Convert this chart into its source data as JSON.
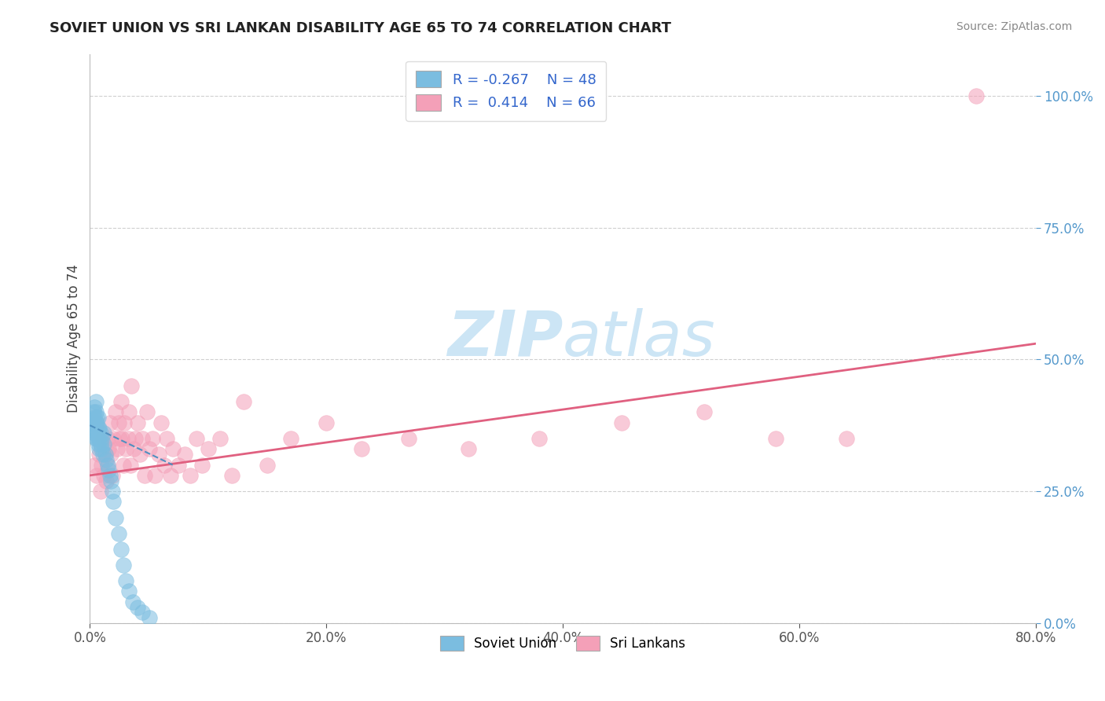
{
  "title": "SOVIET UNION VS SRI LANKAN DISABILITY AGE 65 TO 74 CORRELATION CHART",
  "source": "Source: ZipAtlas.com",
  "ylabel": "Disability Age 65 to 74",
  "xlim": [
    0.0,
    0.8
  ],
  "ylim": [
    0.0,
    1.08
  ],
  "yticks": [
    0.0,
    0.25,
    0.5,
    0.75,
    1.0
  ],
  "ytick_labels": [
    "0.0%",
    "25.0%",
    "50.0%",
    "75.0%",
    "100.0%"
  ],
  "xticks": [
    0.0,
    0.2,
    0.4,
    0.6,
    0.8
  ],
  "xtick_labels": [
    "0.0%",
    "20.0%",
    "40.0%",
    "60.0%",
    "80.0%"
  ],
  "soviet_R": -0.267,
  "soviet_N": 48,
  "srilankan_R": 0.414,
  "srilankan_N": 66,
  "soviet_color": "#7bbde0",
  "srilankan_color": "#f4a0b8",
  "soviet_line_color": "#5090c0",
  "srilankan_line_color": "#e06080",
  "background_color": "#ffffff",
  "grid_color": "#d0d0d0",
  "watermark_color": "#cce5f5",
  "legend_label_soviet": "Soviet Union",
  "legend_label_srilankan": "Sri Lankans",
  "soviet_x": [
    0.001,
    0.002,
    0.003,
    0.003,
    0.004,
    0.004,
    0.004,
    0.005,
    0.005,
    0.005,
    0.005,
    0.005,
    0.006,
    0.006,
    0.006,
    0.006,
    0.007,
    0.007,
    0.007,
    0.007,
    0.008,
    0.008,
    0.008,
    0.009,
    0.009,
    0.01,
    0.01,
    0.011,
    0.012,
    0.012,
    0.013,
    0.014,
    0.015,
    0.016,
    0.017,
    0.018,
    0.019,
    0.02,
    0.022,
    0.024,
    0.026,
    0.028,
    0.03,
    0.033,
    0.036,
    0.04,
    0.044,
    0.05
  ],
  "soviet_y": [
    0.38,
    0.38,
    0.37,
    0.4,
    0.36,
    0.39,
    0.41,
    0.35,
    0.37,
    0.38,
    0.4,
    0.42,
    0.35,
    0.36,
    0.38,
    0.39,
    0.34,
    0.35,
    0.37,
    0.39,
    0.33,
    0.35,
    0.37,
    0.34,
    0.36,
    0.33,
    0.35,
    0.32,
    0.34,
    0.36,
    0.32,
    0.31,
    0.3,
    0.29,
    0.28,
    0.27,
    0.25,
    0.23,
    0.2,
    0.17,
    0.14,
    0.11,
    0.08,
    0.06,
    0.04,
    0.03,
    0.02,
    0.01
  ],
  "srilankan_x": [
    0.004,
    0.006,
    0.008,
    0.009,
    0.01,
    0.011,
    0.012,
    0.013,
    0.014,
    0.015,
    0.015,
    0.016,
    0.017,
    0.018,
    0.019,
    0.02,
    0.022,
    0.023,
    0.024,
    0.025,
    0.026,
    0.027,
    0.028,
    0.029,
    0.03,
    0.032,
    0.033,
    0.034,
    0.035,
    0.037,
    0.038,
    0.04,
    0.042,
    0.044,
    0.046,
    0.048,
    0.05,
    0.053,
    0.055,
    0.058,
    0.06,
    0.063,
    0.065,
    0.068,
    0.07,
    0.075,
    0.08,
    0.085,
    0.09,
    0.095,
    0.1,
    0.11,
    0.12,
    0.13,
    0.15,
    0.17,
    0.2,
    0.23,
    0.27,
    0.32,
    0.38,
    0.45,
    0.52,
    0.58,
    0.64,
    0.75
  ],
  "srilankan_y": [
    0.3,
    0.28,
    0.32,
    0.25,
    0.3,
    0.35,
    0.28,
    0.32,
    0.27,
    0.35,
    0.3,
    0.33,
    0.38,
    0.32,
    0.28,
    0.35,
    0.4,
    0.33,
    0.38,
    0.35,
    0.42,
    0.35,
    0.3,
    0.38,
    0.33,
    0.35,
    0.4,
    0.3,
    0.45,
    0.33,
    0.35,
    0.38,
    0.32,
    0.35,
    0.28,
    0.4,
    0.33,
    0.35,
    0.28,
    0.32,
    0.38,
    0.3,
    0.35,
    0.28,
    0.33,
    0.3,
    0.32,
    0.28,
    0.35,
    0.3,
    0.33,
    0.35,
    0.28,
    0.42,
    0.3,
    0.35,
    0.38,
    0.33,
    0.35,
    0.33,
    0.35,
    0.38,
    0.4,
    0.35,
    0.35,
    1.0
  ],
  "sri_line_x0": 0.0,
  "sri_line_y0": 0.28,
  "sri_line_x1": 0.8,
  "sri_line_y1": 0.53,
  "sov_line_x0": 0.0,
  "sov_line_y0": 0.375,
  "sov_line_x1": 0.07,
  "sov_line_y1": 0.3
}
